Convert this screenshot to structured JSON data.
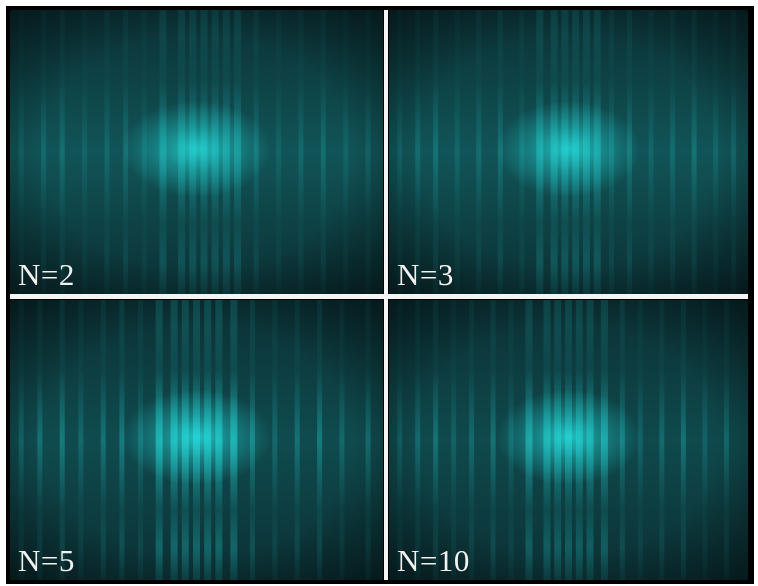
{
  "panels": [
    {
      "label": "N=2",
      "vbright": 0.14,
      "hglow": 0.2
    },
    {
      "label": "N=3",
      "vbright": 0.16,
      "hglow": 0.2
    },
    {
      "label": "N=5",
      "vbright": 0.24,
      "hglow": 0.15
    },
    {
      "label": "N=10",
      "vbright": 0.2,
      "hglow": 0.14
    }
  ],
  "colors": {
    "background": "#0b3034",
    "fringe": "#27e6e6",
    "divider": "#f4f4f4",
    "label": "#f2f2f2"
  }
}
